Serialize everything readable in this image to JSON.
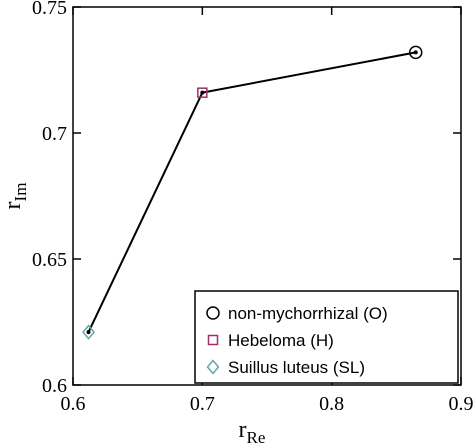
{
  "chart_data": {
    "type": "line",
    "xlabel": "r",
    "xlabel_sub": "Re",
    "ylabel": "r",
    "ylabel_sub": "Im",
    "xlim": [
      0.6,
      0.9
    ],
    "ylim": [
      0.6,
      0.75
    ],
    "xticks": [
      0.6,
      0.7,
      0.8,
      0.9
    ],
    "xtick_labels": [
      "0.6",
      "0.7",
      "0.8",
      "0.9"
    ],
    "yticks": [
      0.6,
      0.65,
      0.7,
      0.75
    ],
    "ytick_labels": [
      "0.6",
      "0.65",
      "0.7",
      "0.75"
    ],
    "grid": false,
    "legend_position": "bottom-right",
    "line_color": "#000000",
    "points": [
      {
        "label": "Suillus luteus (SL)",
        "x": 0.612,
        "y": 0.621,
        "marker": "diamond",
        "color": "#5fa8a8"
      },
      {
        "label": "Hebeloma (H)",
        "x": 0.7,
        "y": 0.716,
        "marker": "square",
        "color": "#a0306a"
      },
      {
        "label": "non-mychorrhizal (O)",
        "x": 0.865,
        "y": 0.732,
        "marker": "circle",
        "color": "#000000"
      }
    ],
    "legend": [
      {
        "label": "non-mychorrhizal (O)",
        "marker": "circle",
        "color": "#000000"
      },
      {
        "label": "Hebeloma (H)",
        "marker": "square",
        "color": "#a0306a"
      },
      {
        "label": "Suillus luteus (SL)",
        "marker": "diamond",
        "color": "#5fa8a8"
      }
    ]
  }
}
